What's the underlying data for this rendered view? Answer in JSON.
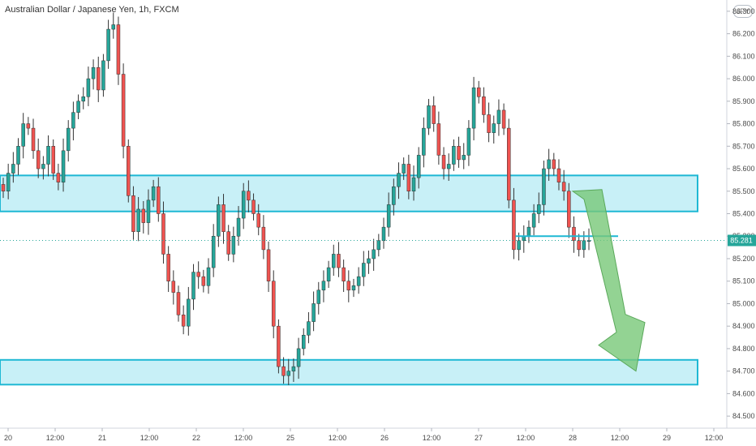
{
  "header": {
    "title": "Australian Dollar / Japanese Yen, 1h, FXCM",
    "currency_badge": "JPY"
  },
  "price_label": {
    "value": "85.281",
    "color": "#26a69a"
  },
  "colors": {
    "up": "#26a69a",
    "down": "#ef5350",
    "zone_fill": "#c8f0f7",
    "zone_stroke": "#1eb8d4",
    "arrow": "#78c878",
    "axis_text": "#4a4a4a"
  },
  "chart_data": {
    "type": "candlestick",
    "title": "Australian Dollar / Japanese Yen, 1h, FXCM",
    "ylim": [
      84.45,
      86.35
    ],
    "y_ticks": [
      "86.300",
      "86.200",
      "86.100",
      "86.000",
      "85.900",
      "85.800",
      "85.700",
      "85.600",
      "85.500",
      "85.400",
      "85.300",
      "85.200",
      "85.100",
      "85.000",
      "84.900",
      "84.800",
      "84.700",
      "84.600",
      "84.500"
    ],
    "x_ticks": [
      "20",
      "12:00",
      "21",
      "12:00",
      "22",
      "12:00",
      "25",
      "12:00",
      "26",
      "12:00",
      "27",
      "12:00",
      "28",
      "12:00",
      "29",
      "12:00"
    ],
    "zones": [
      {
        "from": 85.41,
        "to": 85.57
      },
      {
        "from": 84.64,
        "to": 84.75
      }
    ],
    "hline": {
      "value": 85.3
    },
    "arrow": {
      "direction": "down",
      "from": 85.5,
      "to": 84.7
    },
    "closes": [
      85.5,
      85.58,
      85.62,
      85.7,
      85.8,
      85.78,
      85.68,
      85.6,
      85.62,
      85.7,
      85.58,
      85.54,
      85.68,
      85.78,
      85.85,
      85.9,
      85.92,
      86.0,
      86.05,
      85.95,
      86.08,
      86.22,
      86.24,
      86.02,
      85.7,
      85.48,
      85.32,
      85.42,
      85.36,
      85.46,
      85.52,
      85.4,
      85.22,
      85.1,
      85.05,
      84.95,
      84.9,
      85.02,
      85.14,
      85.12,
      85.08,
      85.16,
      85.3,
      85.44,
      85.32,
      85.22,
      85.3,
      85.38,
      85.5,
      85.46,
      85.4,
      85.34,
      85.24,
      85.1,
      84.9,
      84.72,
      84.68,
      84.7,
      84.72,
      84.8,
      84.86,
      84.92,
      85.0,
      85.06,
      85.1,
      85.16,
      85.22,
      85.16,
      85.1,
      85.06,
      85.08,
      85.12,
      85.18,
      85.2,
      85.24,
      85.28,
      85.34,
      85.44,
      85.52,
      85.58,
      85.62,
      85.5,
      85.56,
      85.66,
      85.78,
      85.88,
      85.8,
      85.66,
      85.6,
      85.62,
      85.7,
      85.64,
      85.66,
      85.78,
      85.96,
      85.92,
      85.84,
      85.76,
      85.8,
      85.86,
      85.78,
      85.46,
      85.24,
      85.28,
      85.3,
      85.34,
      85.4,
      85.44,
      85.6,
      85.64,
      85.6,
      85.54,
      85.5,
      85.34,
      85.28,
      85.24,
      85.28,
      85.28
    ]
  }
}
